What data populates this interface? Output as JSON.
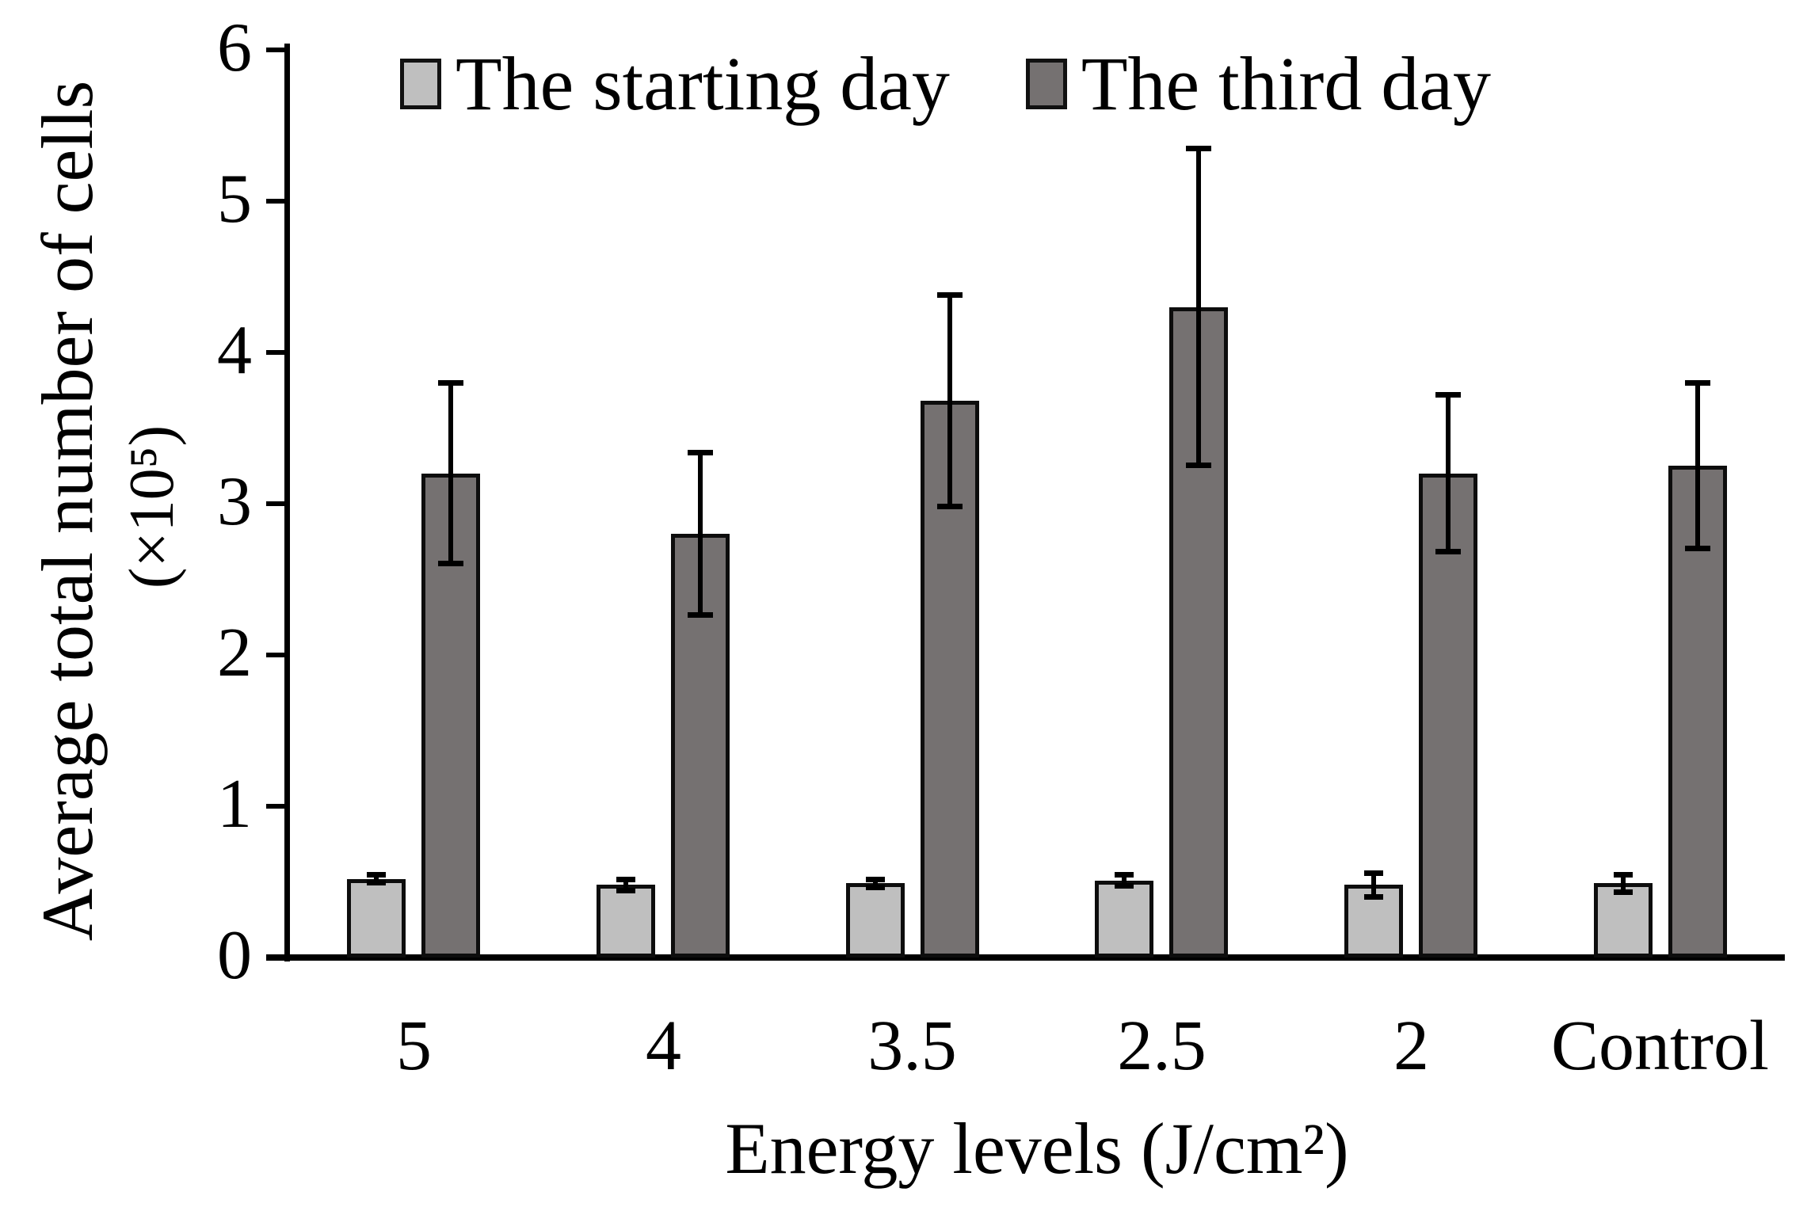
{
  "figure": {
    "background": "#ffffff",
    "text_color": "#000000"
  },
  "chart_data": {
    "type": "bar",
    "title": "",
    "xlabel": "Energy levels (J/cm²)",
    "ylabel": "Average total number of cells",
    "ylabel_unit": "(×10⁵)",
    "categories": [
      "5",
      "4",
      "3.5",
      "2.5",
      "2",
      "Control"
    ],
    "series": [
      {
        "name": "The starting day",
        "color": "#bfbfbf",
        "values": [
          0.52,
          0.48,
          0.49,
          0.51,
          0.48,
          0.49
        ],
        "errors": [
          0.03,
          0.04,
          0.03,
          0.04,
          0.08,
          0.06
        ]
      },
      {
        "name": "The third day",
        "color": "#757171",
        "values": [
          3.2,
          2.8,
          3.68,
          4.3,
          3.2,
          3.25
        ],
        "errors": [
          0.6,
          0.54,
          0.7,
          1.05,
          0.52,
          0.55
        ]
      }
    ],
    "ylim": [
      0,
      6
    ],
    "yticks": [
      "0",
      "1",
      "2",
      "3",
      "4",
      "5",
      "6"
    ],
    "grid": false,
    "legend_position": "top",
    "bar_border_color": "#0d0d0d",
    "error_bar_color": "#000000",
    "axis_color": "#000000"
  }
}
